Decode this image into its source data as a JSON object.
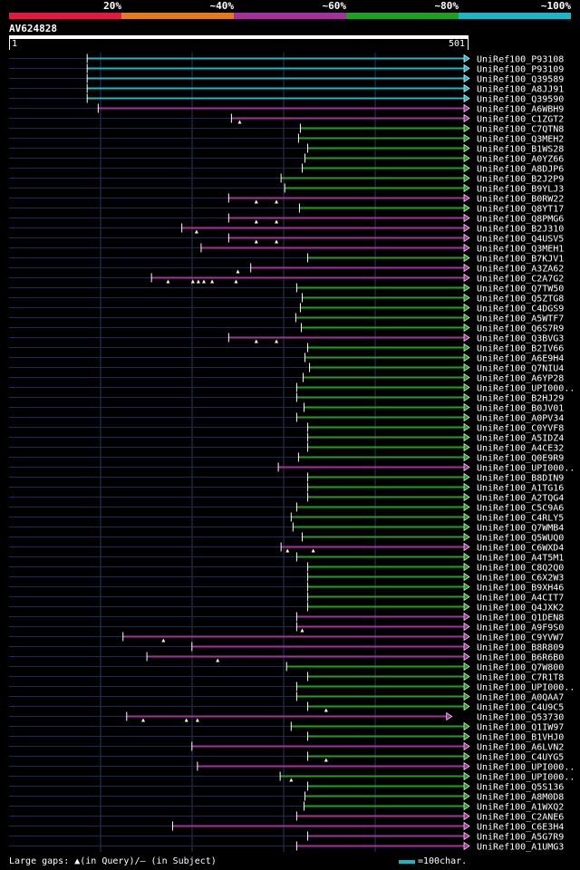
{
  "legend": {
    "labels": [
      "20%",
      "~40%",
      "~60%",
      "~80%",
      "~100%"
    ],
    "colors": [
      "#e8173c",
      "#e87a1c",
      "#a6309d",
      "#20a020",
      "#1ab7c8"
    ]
  },
  "query": {
    "id": "AV624828",
    "start_label": "1",
    "end_label": "501"
  },
  "footer": {
    "gaps_label": "Large gaps: ▲(in Query)/– (in Subject)",
    "scale_label": "=100char."
  },
  "chart_data": {
    "type": "alignment",
    "query_length": 501,
    "color_by_identity": {
      "cyan": "~100%",
      "green": "~80%",
      "purple": "~60%"
    },
    "hits": [
      {
        "id": "UniRef100_P93108",
        "start": 86,
        "end": 501,
        "color": "cyan",
        "gaps": []
      },
      {
        "id": "UniRef100_P93109",
        "start": 86,
        "end": 501,
        "color": "cyan",
        "gaps": []
      },
      {
        "id": "UniRef100_Q39589",
        "start": 86,
        "end": 501,
        "color": "cyan",
        "gaps": []
      },
      {
        "id": "UniRef100_A8JJ91",
        "start": 86,
        "end": 501,
        "color": "cyan",
        "gaps": []
      },
      {
        "id": "UniRef100_Q39590",
        "start": 86,
        "end": 501,
        "color": "cyan",
        "gaps": []
      },
      {
        "id": "UniRef100_A6WBH9",
        "start": 98,
        "end": 501,
        "color": "purple",
        "gaps": []
      },
      {
        "id": "UniRef100_C1ZGT2",
        "start": 243,
        "end": 501,
        "color": "purple",
        "gaps": [
          252
        ]
      },
      {
        "id": "UniRef100_C7QTN8",
        "start": 318,
        "end": 501,
        "color": "green",
        "gaps": []
      },
      {
        "id": "UniRef100_Q3MEH2",
        "start": 316,
        "end": 501,
        "color": "green",
        "gaps": []
      },
      {
        "id": "UniRef100_B1WS28",
        "start": 326,
        "end": 501,
        "color": "green",
        "gaps": []
      },
      {
        "id": "UniRef100_A0YZ66",
        "start": 323,
        "end": 501,
        "color": "green",
        "gaps": []
      },
      {
        "id": "UniRef100_A8DJP6",
        "start": 320,
        "end": 501,
        "color": "green",
        "gaps": []
      },
      {
        "id": "UniRef100_B2J2P9",
        "start": 297,
        "end": 501,
        "color": "green",
        "gaps": []
      },
      {
        "id": "UniRef100_B9YLJ3",
        "start": 301,
        "end": 501,
        "color": "green",
        "gaps": []
      },
      {
        "id": "UniRef100_B0RW22",
        "start": 240,
        "end": 501,
        "color": "purple",
        "gaps": [
          270,
          292
        ]
      },
      {
        "id": "UniRef100_Q8YT17",
        "start": 317,
        "end": 501,
        "color": "green",
        "gaps": []
      },
      {
        "id": "UniRef100_Q8PMG6",
        "start": 240,
        "end": 501,
        "color": "purple",
        "gaps": [
          270,
          292
        ]
      },
      {
        "id": "UniRef100_B2J310",
        "start": 189,
        "end": 501,
        "color": "purple",
        "gaps": [
          205
        ]
      },
      {
        "id": "UniRef100_Q4USV5",
        "start": 240,
        "end": 501,
        "color": "purple",
        "gaps": [
          270,
          292
        ]
      },
      {
        "id": "UniRef100_Q3MEH1",
        "start": 210,
        "end": 501,
        "color": "purple",
        "gaps": []
      },
      {
        "id": "UniRef100_B7KJV1",
        "start": 326,
        "end": 501,
        "color": "green",
        "gaps": []
      },
      {
        "id": "UniRef100_A3ZA62",
        "start": 264,
        "end": 501,
        "color": "purple",
        "gaps": [
          250
        ]
      },
      {
        "id": "UniRef100_C2A7G2",
        "start": 156,
        "end": 501,
        "color": "purple",
        "gaps": [
          174,
          201,
          207,
          213,
          222,
          248
        ]
      },
      {
        "id": "UniRef100_Q7TW50",
        "start": 314,
        "end": 501,
        "color": "green",
        "gaps": []
      },
      {
        "id": "UniRef100_Q5ZTG8",
        "start": 320,
        "end": 501,
        "color": "green",
        "gaps": []
      },
      {
        "id": "UniRef100_C4DGS9",
        "start": 318,
        "end": 501,
        "color": "green",
        "gaps": []
      },
      {
        "id": "UniRef100_A5WTF7",
        "start": 313,
        "end": 501,
        "color": "green",
        "gaps": []
      },
      {
        "id": "UniRef100_Q6S7R9",
        "start": 319,
        "end": 501,
        "color": "green",
        "gaps": []
      },
      {
        "id": "UniRef100_Q3BVG3",
        "start": 240,
        "end": 501,
        "color": "purple",
        "gaps": [
          270,
          292
        ]
      },
      {
        "id": "UniRef100_B2IV66",
        "start": 326,
        "end": 501,
        "color": "green",
        "gaps": []
      },
      {
        "id": "UniRef100_A6E9H4",
        "start": 323,
        "end": 501,
        "color": "green",
        "gaps": []
      },
      {
        "id": "UniRef100_Q7NIU4",
        "start": 328,
        "end": 501,
        "color": "green",
        "gaps": []
      },
      {
        "id": "UniRef100_A6YP28",
        "start": 321,
        "end": 501,
        "color": "green",
        "gaps": []
      },
      {
        "id": "UniRef100_UPI000..",
        "start": 314,
        "end": 501,
        "color": "green",
        "gaps": []
      },
      {
        "id": "UniRef100_B2HJ29",
        "start": 314,
        "end": 501,
        "color": "green",
        "gaps": []
      },
      {
        "id": "UniRef100_B0JV01",
        "start": 322,
        "end": 501,
        "color": "green",
        "gaps": []
      },
      {
        "id": "UniRef100_A0PV34",
        "start": 314,
        "end": 501,
        "color": "green",
        "gaps": []
      },
      {
        "id": "UniRef100_C0YVF8",
        "start": 326,
        "end": 501,
        "color": "green",
        "gaps": []
      },
      {
        "id": "UniRef100_A5IDZ4",
        "start": 326,
        "end": 501,
        "color": "green",
        "gaps": []
      },
      {
        "id": "UniRef100_A4CE32",
        "start": 326,
        "end": 501,
        "color": "green",
        "gaps": []
      },
      {
        "id": "UniRef100_Q0E9R9",
        "start": 316,
        "end": 501,
        "color": "green",
        "gaps": []
      },
      {
        "id": "UniRef100_UPI000..",
        "start": 294,
        "end": 501,
        "color": "purple",
        "gaps": []
      },
      {
        "id": "UniRef100_B8DIN9",
        "start": 326,
        "end": 501,
        "color": "green",
        "gaps": []
      },
      {
        "id": "UniRef100_A1TG16",
        "start": 326,
        "end": 501,
        "color": "green",
        "gaps": []
      },
      {
        "id": "UniRef100_A2TQG4",
        "start": 326,
        "end": 501,
        "color": "green",
        "gaps": []
      },
      {
        "id": "UniRef100_C5C9A6",
        "start": 314,
        "end": 501,
        "color": "green",
        "gaps": []
      },
      {
        "id": "UniRef100_C4RLY5",
        "start": 308,
        "end": 501,
        "color": "green",
        "gaps": []
      },
      {
        "id": "UniRef100_Q7WMB4",
        "start": 310,
        "end": 501,
        "color": "green",
        "gaps": []
      },
      {
        "id": "UniRef100_Q5WUQ0",
        "start": 320,
        "end": 501,
        "color": "green",
        "gaps": []
      },
      {
        "id": "UniRef100_C6WXD4",
        "start": 297,
        "end": 501,
        "color": "purple",
        "gaps": [
          304,
          332
        ]
      },
      {
        "id": "UniRef100_A4T5M1",
        "start": 314,
        "end": 501,
        "color": "green",
        "gaps": []
      },
      {
        "id": "UniRef100_C8Q2Q0",
        "start": 326,
        "end": 501,
        "color": "green",
        "gaps": []
      },
      {
        "id": "UniRef100_C6X2W3",
        "start": 326,
        "end": 501,
        "color": "green",
        "gaps": []
      },
      {
        "id": "UniRef100_B9XH46",
        "start": 326,
        "end": 501,
        "color": "green",
        "gaps": []
      },
      {
        "id": "UniRef100_A4CIT7",
        "start": 326,
        "end": 501,
        "color": "green",
        "gaps": []
      },
      {
        "id": "UniRef100_Q4JXK2",
        "start": 326,
        "end": 501,
        "color": "green",
        "gaps": []
      },
      {
        "id": "UniRef100_Q1DEN8",
        "start": 314,
        "end": 501,
        "color": "purple",
        "gaps": []
      },
      {
        "id": "UniRef100_A9F9S0",
        "start": 314,
        "end": 501,
        "color": "purple",
        "gaps": [
          320
        ]
      },
      {
        "id": "UniRef100_C9YVW7",
        "start": 125,
        "end": 501,
        "color": "purple",
        "gaps": [
          169
        ]
      },
      {
        "id": "UniRef100_B8R809",
        "start": 200,
        "end": 501,
        "color": "purple",
        "gaps": []
      },
      {
        "id": "UniRef100_B6R6B0",
        "start": 151,
        "end": 501,
        "color": "purple",
        "gaps": [
          228
        ]
      },
      {
        "id": "UniRef100_Q7W800",
        "start": 303,
        "end": 501,
        "color": "green",
        "gaps": []
      },
      {
        "id": "UniRef100_C7R1T8",
        "start": 326,
        "end": 501,
        "color": "green",
        "gaps": []
      },
      {
        "id": "UniRef100_UPI000..",
        "start": 314,
        "end": 501,
        "color": "green",
        "gaps": []
      },
      {
        "id": "UniRef100_A0QAA7",
        "start": 314,
        "end": 501,
        "color": "green",
        "gaps": []
      },
      {
        "id": "UniRef100_C4U9C5",
        "start": 326,
        "end": 501,
        "color": "green",
        "gaps": [
          346
        ]
      },
      {
        "id": "UniRef100_Q53730",
        "start": 129,
        "end": 482,
        "color": "purple",
        "gaps": [
          147,
          194,
          206
        ]
      },
      {
        "id": "UniRef100_Q1IW97",
        "start": 308,
        "end": 501,
        "color": "green",
        "gaps": []
      },
      {
        "id": "UniRef100_B1VHJ0",
        "start": 326,
        "end": 501,
        "color": "green",
        "gaps": []
      },
      {
        "id": "UniRef100_A6LVN2",
        "start": 200,
        "end": 501,
        "color": "purple",
        "gaps": []
      },
      {
        "id": "UniRef100_C4UYG5",
        "start": 326,
        "end": 501,
        "color": "green",
        "gaps": [
          346
        ]
      },
      {
        "id": "UniRef100_UPI000..",
        "start": 206,
        "end": 501,
        "color": "purple",
        "gaps": []
      },
      {
        "id": "UniRef100_UPI000..",
        "start": 296,
        "end": 501,
        "color": "green",
        "gaps": [
          308
        ]
      },
      {
        "id": "UniRef100_Q5S136",
        "start": 326,
        "end": 501,
        "color": "green",
        "gaps": []
      },
      {
        "id": "UniRef100_A8M0D8",
        "start": 323,
        "end": 501,
        "color": "green",
        "gaps": []
      },
      {
        "id": "UniRef100_A1WXQ2",
        "start": 322,
        "end": 501,
        "color": "green",
        "gaps": []
      },
      {
        "id": "UniRef100_C2ANE6",
        "start": 314,
        "end": 501,
        "color": "purple",
        "gaps": []
      },
      {
        "id": "UniRef100_C6E3H4",
        "start": 179,
        "end": 501,
        "color": "purple",
        "gaps": []
      },
      {
        "id": "UniRef100_A5G7R9",
        "start": 326,
        "end": 501,
        "color": "purple",
        "gaps": []
      },
      {
        "id": "UniRef100_A1UMG3",
        "start": 314,
        "end": 501,
        "color": "purple",
        "gaps": []
      }
    ]
  }
}
